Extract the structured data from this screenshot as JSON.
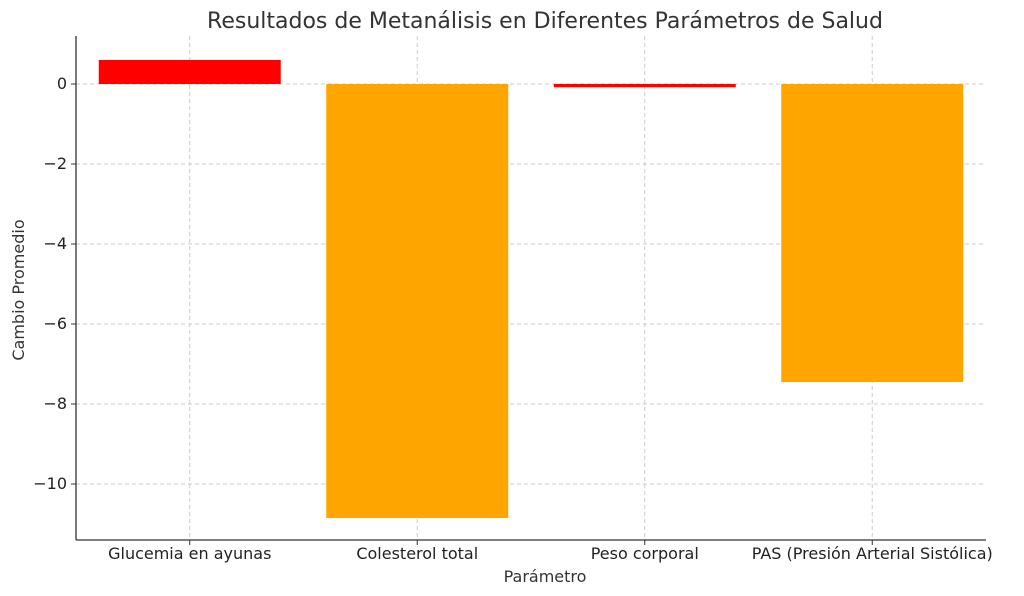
{
  "chart_data": {
    "type": "bar",
    "title": "Resultados de Metanálisis en Diferentes Parámetros de Salud",
    "xlabel": "Parámetro",
    "ylabel": "Cambio Promedio",
    "categories": [
      "Glucemia en ayunas",
      "Colesterol total",
      "Peso corporal",
      "PAS (Presión Arterial Sistólica)"
    ],
    "values": [
      0.6,
      -10.85,
      -0.08,
      -7.45
    ],
    "bar_colors": [
      "#ff0000",
      "#ffa500",
      "#ff0000",
      "#ffa500"
    ],
    "ylim": [
      -11.4,
      1.2
    ],
    "yticks": [
      0,
      -2,
      -4,
      -6,
      -8,
      -10
    ],
    "ytick_labels": [
      "0",
      "−2",
      "−4",
      "−6",
      "−8",
      "−10"
    ],
    "grid": true
  }
}
